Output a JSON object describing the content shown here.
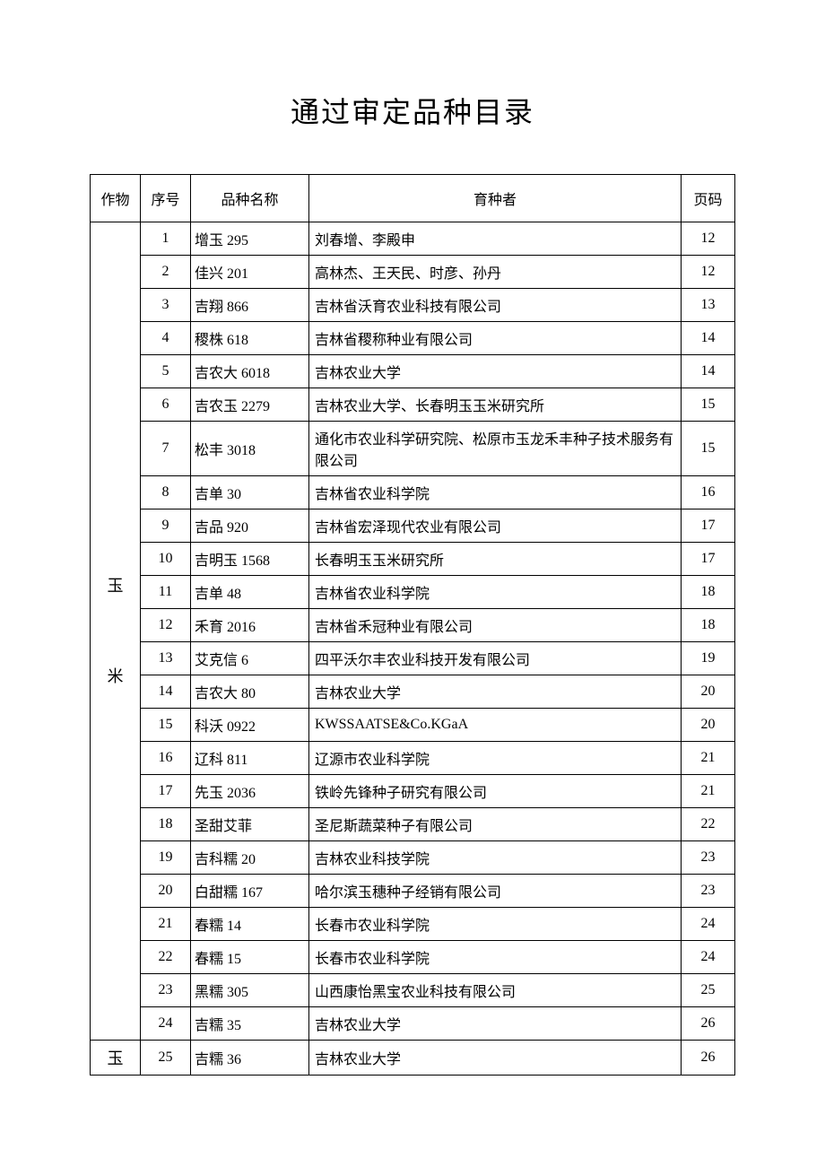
{
  "title": "通过审定品种目录",
  "columns": {
    "crop": "作物",
    "idx": "序号",
    "name": "品种名称",
    "breeder": "育种者",
    "page": "页码"
  },
  "crop_group1": "玉\n\n米",
  "crop_group2": "玉",
  "rows": [
    {
      "idx": "1",
      "name": "增玉 295",
      "breeder": "刘春增、李殿申",
      "page": "12"
    },
    {
      "idx": "2",
      "name": "佳兴 201",
      "breeder": "高林杰、王天民、时彦、孙丹",
      "page": "12"
    },
    {
      "idx": "3",
      "name": "吉翔 866",
      "breeder": "吉林省沃育农业科技有限公司",
      "page": "13"
    },
    {
      "idx": "4",
      "name": "稷株 618",
      "breeder": "吉林省稷称种业有限公司",
      "page": "14"
    },
    {
      "idx": "5",
      "name": "吉农大 6018",
      "breeder": "吉林农业大学",
      "page": "14"
    },
    {
      "idx": "6",
      "name": "吉农玉 2279",
      "breeder": "吉林农业大学、长春明玉玉米研究所",
      "page": "15"
    },
    {
      "idx": "7",
      "name": "松丰 3018",
      "breeder": "通化市农业科学研究院、松原市玉龙禾丰种子技术服务有限公司",
      "page": "15"
    },
    {
      "idx": "8",
      "name": "吉单 30",
      "breeder": "吉林省农业科学院",
      "page": "16"
    },
    {
      "idx": "9",
      "name": "吉品 920",
      "breeder": "吉林省宏泽现代农业有限公司",
      "page": "17"
    },
    {
      "idx": "10",
      "name": "吉明玉 1568",
      "breeder": "长春明玉玉米研究所",
      "page": "17"
    },
    {
      "idx": "11",
      "name": "吉单 48",
      "breeder": "吉林省农业科学院",
      "page": "18"
    },
    {
      "idx": "12",
      "name": "禾育 2016",
      "breeder": "吉林省禾冠种业有限公司",
      "page": "18"
    },
    {
      "idx": "13",
      "name": "艾克信 6",
      "breeder": "四平沃尔丰农业科技开发有限公司",
      "page": "19"
    },
    {
      "idx": "14",
      "name": "吉农大 80",
      "breeder": "吉林农业大学",
      "page": "20"
    },
    {
      "idx": "15",
      "name": "科沃 0922",
      "breeder": "KWSSAATSE&Co.KGaA",
      "page": "20"
    },
    {
      "idx": "16",
      "name": "辽科 811",
      "breeder": "辽源市农业科学院",
      "page": "21"
    },
    {
      "idx": "17",
      "name": "先玉 2036",
      "breeder": "铁岭先锋种子研究有限公司",
      "page": "21"
    },
    {
      "idx": "18",
      "name": "圣甜艾菲",
      "breeder": "圣尼斯蔬菜种子有限公司",
      "page": "22"
    },
    {
      "idx": "19",
      "name": "吉科糯 20",
      "breeder": "吉林农业科技学院",
      "page": "23"
    },
    {
      "idx": "20",
      "name": "白甜糯 167",
      "breeder": "哈尔滨玉穗种子经销有限公司",
      "page": "23"
    },
    {
      "idx": "21",
      "name": "春糯 14",
      "breeder": "长春市农业科学院",
      "page": "24"
    },
    {
      "idx": "22",
      "name": "春糯 15",
      "breeder": "长春市农业科学院",
      "page": "24"
    },
    {
      "idx": "23",
      "name": "黑糯 305",
      "breeder": "山西康怡黑宝农业科技有限公司",
      "page": "25"
    },
    {
      "idx": "24",
      "name": "吉糯 35",
      "breeder": "吉林农业大学",
      "page": "26"
    },
    {
      "idx": "25",
      "name": "吉糯 36",
      "breeder": "吉林农业大学",
      "page": "26"
    }
  ]
}
